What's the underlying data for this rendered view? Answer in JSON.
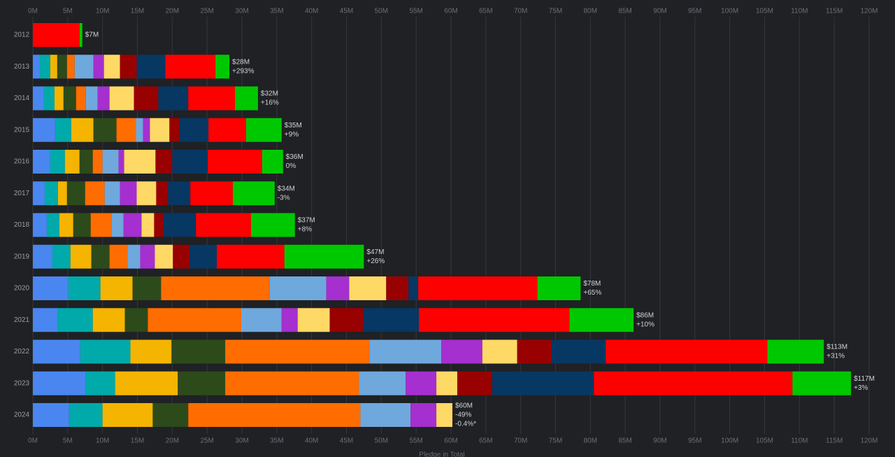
{
  "chart_data": {
    "type": "bar",
    "orientation": "horizontal",
    "x_label": "Pledge in Total",
    "categories": [
      "2012",
      "2013",
      "2014",
      "2015",
      "2016",
      "2017",
      "2018",
      "2019",
      "2020",
      "2021",
      "2022",
      "2023",
      "2024"
    ],
    "series": [
      {
        "color": "#4a86f0",
        "values": [
          0,
          1.0,
          1.6,
          3.2,
          2.5,
          1.7,
          2.0,
          2.8,
          5.1,
          3.6,
          6.8,
          7.6,
          5.2
        ]
      },
      {
        "color": "#00aaaa",
        "values": [
          0,
          1.5,
          1.5,
          2.3,
          2.1,
          1.9,
          1.8,
          2.6,
          4.6,
          5.0,
          7.2,
          4.2,
          4.8
        ]
      },
      {
        "color": "#f4b400",
        "values": [
          0,
          1.0,
          1.3,
          3.2,
          2.1,
          1.3,
          2.0,
          3.0,
          4.6,
          4.6,
          5.9,
          9.0,
          7.2
        ]
      },
      {
        "color": "#2d4a1a",
        "values": [
          0,
          1.4,
          1.8,
          3.3,
          1.9,
          2.6,
          2.5,
          2.6,
          4.1,
          3.3,
          7.7,
          6.8,
          5.1
        ]
      },
      {
        "color": "#ff6d00",
        "values": [
          0,
          1.1,
          1.4,
          2.8,
          1.4,
          2.8,
          3.0,
          2.6,
          15.6,
          13.4,
          20.7,
          19.2,
          24.7
        ]
      },
      {
        "color": "#6fa8dc",
        "values": [
          0,
          2.7,
          1.7,
          1.0,
          2.3,
          2.2,
          1.7,
          1.8,
          8.1,
          5.8,
          10.3,
          6.7,
          7.2
        ]
      },
      {
        "color": "#a52fcf",
        "values": [
          0,
          1.5,
          1.7,
          1.0,
          0.8,
          2.4,
          2.6,
          2.1,
          3.3,
          2.3,
          5.9,
          4.4,
          3.7
        ]
      },
      {
        "color": "#ffd966",
        "values": [
          0,
          2.3,
          3.5,
          2.8,
          4.5,
          2.8,
          1.8,
          2.6,
          5.3,
          4.6,
          5.0,
          3.0,
          2.3
        ]
      },
      {
        "color": "#990000",
        "values": [
          0,
          2.4,
          3.5,
          1.4,
          2.4,
          1.7,
          1.3,
          2.4,
          3.2,
          4.8,
          4.9,
          5.0,
          0
        ]
      },
      {
        "color": "#073763",
        "values": [
          0,
          4.1,
          4.3,
          4.2,
          5.1,
          3.2,
          4.7,
          3.9,
          1.4,
          8.0,
          7.8,
          14.6,
          0
        ]
      },
      {
        "color": "#ff0000",
        "values": [
          6.7,
          7.2,
          6.7,
          5.4,
          7.8,
          6.1,
          7.9,
          9.7,
          17.1,
          21.6,
          23.2,
          28.5,
          0
        ]
      },
      {
        "color": "#00c800",
        "values": [
          0.4,
          2.0,
          3.3,
          5.1,
          3.0,
          6.0,
          6.3,
          11.4,
          6.2,
          9.2,
          8.1,
          8.4,
          0
        ]
      }
    ],
    "total_labels": [
      "$7M",
      "$28M",
      "$32M",
      "$35M",
      "$36M",
      "$34M",
      "$37M",
      "$47M",
      "$78M",
      "$86M",
      "$113M",
      "$117M",
      "$60M"
    ],
    "change_labels": [
      [],
      [
        "+293%"
      ],
      [
        "+16%"
      ],
      [
        "+9%"
      ],
      [
        "0%"
      ],
      [
        "-3%"
      ],
      [
        "+8%"
      ],
      [
        "+26%"
      ],
      [
        "+65%"
      ],
      [
        "+10%"
      ],
      [
        "+31%"
      ],
      [
        "+3%"
      ],
      [
        "-49%",
        "-0.4%*"
      ]
    ],
    "xlim": [
      0,
      120
    ],
    "xticks": [
      {
        "value": 0,
        "label": "0M"
      },
      {
        "value": 5,
        "label": "5M"
      },
      {
        "value": 10,
        "label": "10M"
      },
      {
        "value": 15,
        "label": "15M"
      },
      {
        "value": 20,
        "label": "20M"
      },
      {
        "value": 25,
        "label": "25M"
      },
      {
        "value": 30,
        "label": "30M"
      },
      {
        "value": 35,
        "label": "35M"
      },
      {
        "value": 40,
        "label": "40M"
      },
      {
        "value": 45,
        "label": "45M"
      },
      {
        "value": 50,
        "label": "50M"
      },
      {
        "value": 55,
        "label": "55M"
      },
      {
        "value": 60,
        "label": "60M"
      },
      {
        "value": 65,
        "label": "65M"
      },
      {
        "value": 70,
        "label": "70M"
      },
      {
        "value": 75,
        "label": "75M"
      },
      {
        "value": 80,
        "label": "80M"
      },
      {
        "value": 85,
        "label": "85M"
      },
      {
        "value": 90,
        "label": "90M"
      },
      {
        "value": 95,
        "label": "95M"
      },
      {
        "value": 100,
        "label": "100M"
      },
      {
        "value": 105,
        "label": "105M"
      },
      {
        "value": 110,
        "label": "110M"
      },
      {
        "value": 115,
        "label": "115M"
      },
      {
        "value": 120,
        "label": "120M"
      }
    ],
    "grid": true
  }
}
